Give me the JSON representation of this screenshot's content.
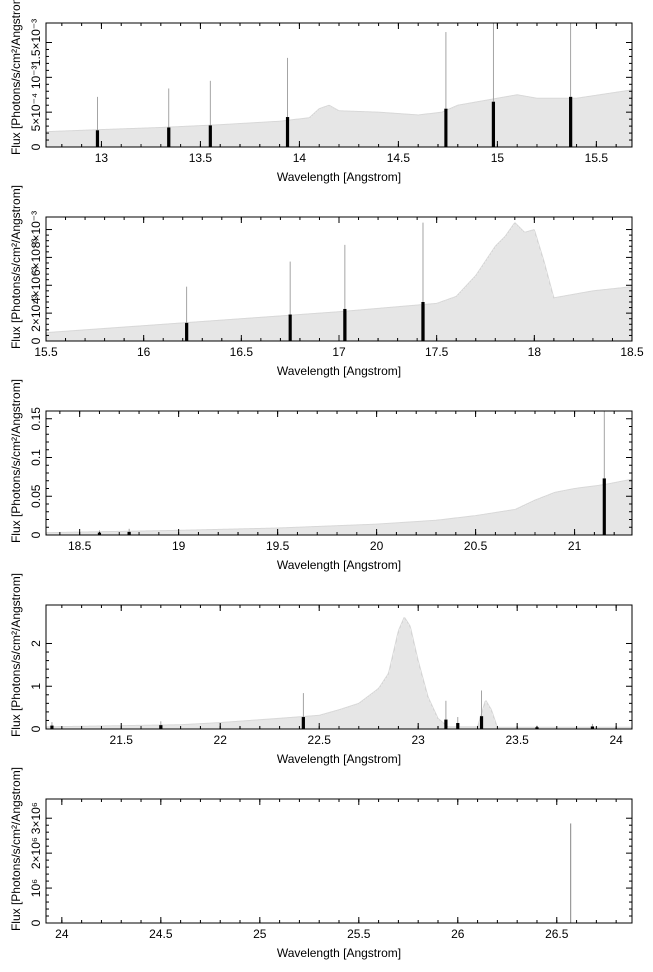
{
  "chart_data": [
    {
      "type": "bar",
      "xlabel": "Wavelength [Angstrom]",
      "ylabel": "Flux [Photons/s/cm²/Angstrom]",
      "xlim": [
        12.72,
        15.68
      ],
      "ylim": [
        0,
        0.00178
      ],
      "xticks": [
        {
          "v": 13,
          "label": "13"
        },
        {
          "v": 13.5,
          "label": "13.5"
        },
        {
          "v": 14,
          "label": "14"
        },
        {
          "v": 14.5,
          "label": "14.5"
        },
        {
          "v": 15,
          "label": "15"
        },
        {
          "v": 15.5,
          "label": "15.5"
        }
      ],
      "yticks": [
        {
          "v": 0,
          "label": "0"
        },
        {
          "v": 0.0005,
          "label": "5×10⁻⁴"
        },
        {
          "v": 0.001,
          "label": "10⁻³"
        },
        {
          "v": 0.0015,
          "label": "1.5×10⁻³"
        }
      ],
      "continuum": [
        [
          12.72,
          0.00022
        ],
        [
          13.0,
          0.00025
        ],
        [
          13.3,
          0.00028
        ],
        [
          13.6,
          0.00032
        ],
        [
          13.9,
          0.00037
        ],
        [
          14.05,
          0.00042
        ],
        [
          14.1,
          0.00055
        ],
        [
          14.15,
          0.0006
        ],
        [
          14.2,
          0.00052
        ],
        [
          14.4,
          0.0005
        ],
        [
          14.6,
          0.00046
        ],
        [
          14.72,
          0.0005
        ],
        [
          14.8,
          0.0006
        ],
        [
          14.9,
          0.00065
        ],
        [
          15.1,
          0.00075
        ],
        [
          15.2,
          0.0007
        ],
        [
          15.4,
          0.0007
        ],
        [
          15.68,
          0.00082
        ]
      ],
      "lines": [
        {
          "x": 12.98,
          "value": 0.00024,
          "err": 0.00048
        },
        {
          "x": 13.34,
          "value": 0.00028,
          "err": 0.00056
        },
        {
          "x": 13.55,
          "value": 0.00031,
          "err": 0.00064
        },
        {
          "x": 13.94,
          "value": 0.00043,
          "err": 0.00085
        },
        {
          "x": 14.74,
          "value": 0.00055,
          "err": 0.0011
        },
        {
          "x": 14.98,
          "value": 0.00065,
          "err": 0.0013
        },
        {
          "x": 15.37,
          "value": 0.00072,
          "err": 0.00145
        }
      ]
    },
    {
      "type": "bar",
      "xlabel": "Wavelength [Angstrom]",
      "ylabel": "Flux [Photons/s/cm²/Angstrom]",
      "xlim": [
        15.5,
        18.5
      ],
      "ylim": [
        0,
        0.0089
      ],
      "xticks": [
        {
          "v": 15.5,
          "label": "15.5"
        },
        {
          "v": 16,
          "label": "16"
        },
        {
          "v": 16.5,
          "label": "16.5"
        },
        {
          "v": 17,
          "label": "17"
        },
        {
          "v": 17.5,
          "label": "17.5"
        },
        {
          "v": 18,
          "label": "18"
        },
        {
          "v": 18.5,
          "label": "18.5"
        }
      ],
      "yticks": [
        {
          "v": 0,
          "label": "0"
        },
        {
          "v": 0.002,
          "label": "2×10⁻³"
        },
        {
          "v": 0.004,
          "label": "4×10⁻³"
        },
        {
          "v": 0.006,
          "label": "6×10⁻³"
        },
        {
          "v": 0.008,
          "label": "8×10⁻³"
        }
      ],
      "continuum": [
        [
          15.5,
          0.0006
        ],
        [
          16.0,
          0.0011
        ],
        [
          16.5,
          0.0016
        ],
        [
          17.0,
          0.0021
        ],
        [
          17.5,
          0.0027
        ],
        [
          17.6,
          0.0032
        ],
        [
          17.7,
          0.0047
        ],
        [
          17.8,
          0.0068
        ],
        [
          17.85,
          0.0075
        ],
        [
          17.9,
          0.0085
        ],
        [
          17.95,
          0.0078
        ],
        [
          18.0,
          0.008
        ],
        [
          18.05,
          0.0057
        ],
        [
          18.1,
          0.0031
        ],
        [
          18.3,
          0.0036
        ],
        [
          18.5,
          0.0039
        ]
      ],
      "lines": [
        {
          "x": 16.22,
          "value": 0.0013,
          "err": 0.0026
        },
        {
          "x": 16.75,
          "value": 0.0019,
          "err": 0.0038
        },
        {
          "x": 17.03,
          "value": 0.0023,
          "err": 0.0046
        },
        {
          "x": 17.43,
          "value": 0.0028,
          "err": 0.0057
        }
      ]
    },
    {
      "type": "bar",
      "xlabel": "Wavelength [Angstrom]",
      "ylabel": "Flux [Photons/s/cm²/Angstrom]",
      "xlim": [
        18.33,
        21.29
      ],
      "ylim": [
        0,
        0.16
      ],
      "xticks": [
        {
          "v": 18.5,
          "label": "18.5"
        },
        {
          "v": 19,
          "label": "19"
        },
        {
          "v": 19.5,
          "label": "19.5"
        },
        {
          "v": 20,
          "label": "20"
        },
        {
          "v": 20.5,
          "label": "20.5"
        },
        {
          "v": 21,
          "label": "21"
        }
      ],
      "yticks": [
        {
          "v": 0,
          "label": "0"
        },
        {
          "v": 0.05,
          "label": "0.05"
        },
        {
          "v": 0.1,
          "label": "0.1"
        },
        {
          "v": 0.15,
          "label": "0.15"
        }
      ],
      "continuum": [
        [
          18.33,
          0.003
        ],
        [
          19.0,
          0.006
        ],
        [
          19.5,
          0.009
        ],
        [
          20.0,
          0.014
        ],
        [
          20.3,
          0.019
        ],
        [
          20.5,
          0.025
        ],
        [
          20.7,
          0.033
        ],
        [
          20.8,
          0.045
        ],
        [
          20.9,
          0.055
        ],
        [
          21.0,
          0.06
        ],
        [
          21.15,
          0.065
        ],
        [
          21.29,
          0.072
        ]
      ],
      "lines": [
        {
          "x": 18.6,
          "value": 0.003,
          "err": 0.003
        },
        {
          "x": 18.75,
          "value": 0.004,
          "err": 0.004
        },
        {
          "x": 21.15,
          "value": 0.073,
          "err": 0.14
        }
      ]
    },
    {
      "type": "bar",
      "xlabel": "Wavelength [Angstrom]",
      "ylabel": "Flux [Photons/s/cm²/Angstrom]",
      "xlim": [
        21.12,
        24.08
      ],
      "ylim": [
        0,
        2.9
      ],
      "xticks": [
        {
          "v": 21.5,
          "label": "21.5"
        },
        {
          "v": 22,
          "label": "22"
        },
        {
          "v": 22.5,
          "label": "22.5"
        },
        {
          "v": 23,
          "label": "23"
        },
        {
          "v": 23.5,
          "label": "23.5"
        },
        {
          "v": 24,
          "label": "24"
        }
      ],
      "yticks": [
        {
          "v": 0,
          "label": "0"
        },
        {
          "v": 1,
          "label": "1"
        },
        {
          "v": 2,
          "label": "2"
        }
      ],
      "continuum": [
        [
          21.12,
          0.05
        ],
        [
          21.8,
          0.1
        ],
        [
          22.0,
          0.15
        ],
        [
          22.3,
          0.25
        ],
        [
          22.5,
          0.32
        ],
        [
          22.6,
          0.45
        ],
        [
          22.7,
          0.6
        ],
        [
          22.8,
          0.95
        ],
        [
          22.85,
          1.3
        ],
        [
          22.9,
          2.3
        ],
        [
          22.93,
          2.62
        ],
        [
          22.96,
          2.4
        ],
        [
          23.0,
          1.6
        ],
        [
          23.05,
          0.75
        ],
        [
          23.1,
          0.25
        ],
        [
          23.15,
          0.05
        ],
        [
          23.3,
          0.05
        ],
        [
          23.34,
          0.68
        ],
        [
          23.37,
          0.45
        ],
        [
          23.4,
          0.04
        ],
        [
          24.08,
          0.04
        ]
      ],
      "lines": [
        {
          "x": 21.15,
          "value": 0.08,
          "err": 0.08
        },
        {
          "x": 21.7,
          "value": 0.09,
          "err": 0.09
        },
        {
          "x": 22.42,
          "value": 0.28,
          "err": 0.56
        },
        {
          "x": 23.14,
          "value": 0.22,
          "err": 0.44
        },
        {
          "x": 23.2,
          "value": 0.14,
          "err": 0.14
        },
        {
          "x": 23.32,
          "value": 0.3,
          "err": 0.6
        },
        {
          "x": 23.6,
          "value": 0.04,
          "err": 0.04
        },
        {
          "x": 23.88,
          "value": 0.06,
          "err": 0.06
        }
      ]
    },
    {
      "type": "bar",
      "xlabel": "Wavelength [Angstrom]",
      "ylabel": "Flux [Photons/s/cm²/Angstrom]",
      "xlim": [
        23.92,
        26.88
      ],
      "ylim": [
        0,
        3550000
      ],
      "xticks": [
        {
          "v": 24,
          "label": "24"
        },
        {
          "v": 24.5,
          "label": "24.5"
        },
        {
          "v": 25,
          "label": "25"
        },
        {
          "v": 25.5,
          "label": "25.5"
        },
        {
          "v": 26,
          "label": "26"
        },
        {
          "v": 26.5,
          "label": "26.5"
        }
      ],
      "yticks": [
        {
          "v": 0,
          "label": "0"
        },
        {
          "v": 1000000,
          "label": "10⁶"
        },
        {
          "v": 2000000,
          "label": "2×10⁶"
        },
        {
          "v": 3000000,
          "label": "3×10⁶"
        }
      ],
      "continuum": [],
      "lines": [
        {
          "x": 26.57,
          "value": 2850000,
          "err": 0
        }
      ]
    }
  ]
}
